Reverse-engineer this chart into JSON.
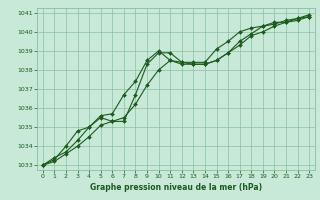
{
  "bg_color": "#c8e8d8",
  "grid_color": "#7ab898",
  "line_color": "#1a5c1a",
  "marker_color": "#1a5c1a",
  "xlabel": "Graphe pression niveau de la mer (hPa)",
  "xlabel_color": "#1a5c1a",
  "ylabel_color": "#1a5c1a",
  "xlim": [
    0,
    23
  ],
  "ylim": [
    1033,
    1041
  ],
  "yticks": [
    1033,
    1034,
    1035,
    1036,
    1037,
    1038,
    1039,
    1040,
    1041
  ],
  "xticks": [
    0,
    1,
    2,
    3,
    4,
    5,
    6,
    7,
    8,
    9,
    10,
    11,
    12,
    13,
    14,
    15,
    16,
    17,
    18,
    19,
    20,
    21,
    22,
    23
  ],
  "series1": [
    1033.0,
    1033.4,
    1033.7,
    1034.3,
    1035.0,
    1035.5,
    1035.3,
    1035.3,
    1036.7,
    1038.3,
    1038.9,
    1038.9,
    1038.4,
    1038.4,
    1038.4,
    1039.1,
    1039.5,
    1040.0,
    1040.2,
    1040.3,
    1040.4,
    1040.6,
    1040.7,
    1040.8
  ],
  "series2": [
    1033.0,
    1033.3,
    1034.0,
    1034.8,
    1035.0,
    1035.6,
    1035.7,
    1036.7,
    1037.4,
    1038.5,
    1039.0,
    1038.5,
    1038.3,
    1038.3,
    1038.3,
    1038.5,
    1038.9,
    1039.5,
    1039.9,
    1040.3,
    1040.5,
    1040.5,
    1040.7,
    1040.9
  ],
  "series3": [
    1033.0,
    1033.2,
    1033.6,
    1034.0,
    1034.5,
    1035.1,
    1035.3,
    1035.5,
    1036.2,
    1037.2,
    1038.0,
    1038.5,
    1038.4,
    1038.3,
    1038.3,
    1038.5,
    1038.9,
    1039.3,
    1039.8,
    1040.0,
    1040.3,
    1040.5,
    1040.6,
    1040.8
  ]
}
